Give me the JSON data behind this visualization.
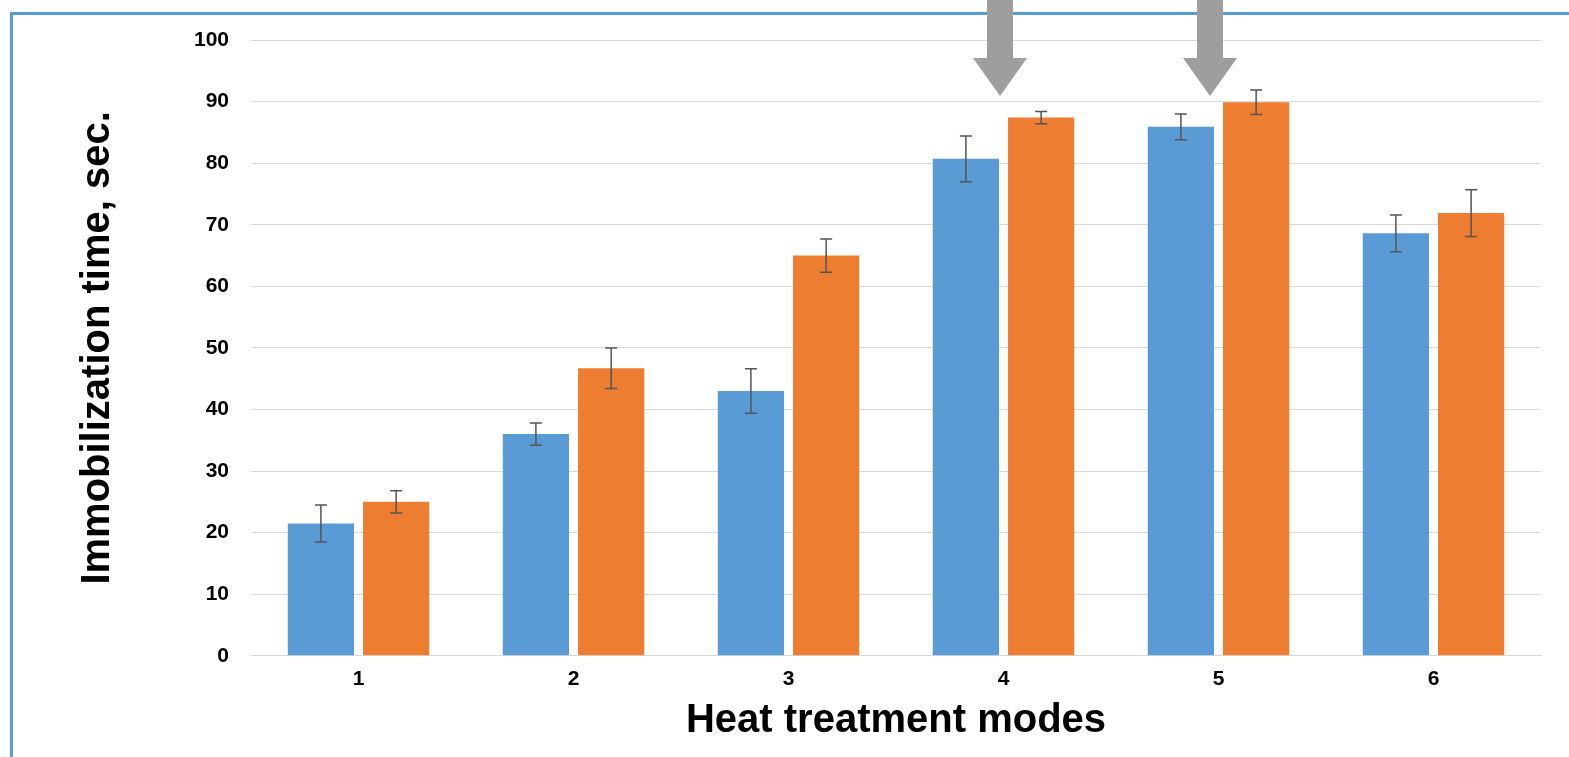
{
  "chart_data": {
    "type": "bar",
    "xlabel": "Heat treatment modes",
    "ylabel": "Immobilization time, sec.",
    "categories": [
      "1",
      "2",
      "3",
      "4",
      "5",
      "6"
    ],
    "series": [
      {
        "color": "#5b9bd5",
        "values": [
          21.5,
          36,
          43,
          80.7,
          85.9,
          68.6
        ],
        "errors": [
          3,
          1.8,
          3.6,
          3.7,
          2.1,
          3
        ]
      },
      {
        "color": "#ed7d31",
        "values": [
          25,
          46.7,
          65,
          87.4,
          89.9,
          71.9
        ],
        "errors": [
          1.8,
          3.3,
          2.7,
          1,
          2,
          3.8
        ]
      }
    ],
    "ylim": [
      0,
      100
    ],
    "yticks": [
      0,
      10,
      20,
      30,
      40,
      50,
      60,
      70,
      80,
      90,
      100
    ],
    "grid": "y",
    "legend": false
  }
}
